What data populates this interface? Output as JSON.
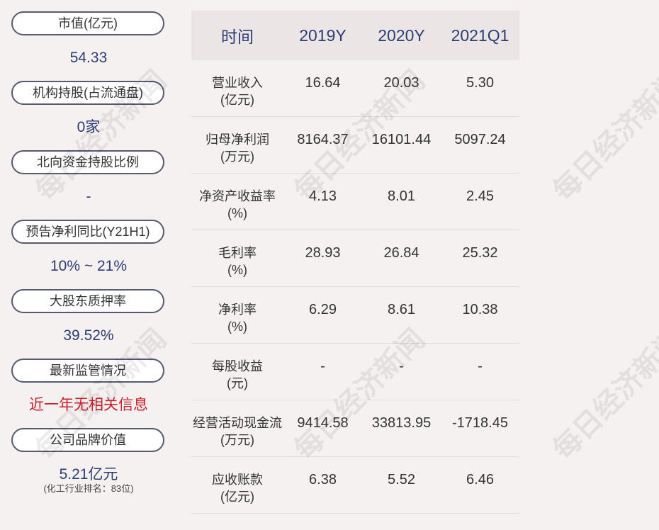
{
  "left_panel": [
    {
      "label": "市值(亿元)",
      "value": "54.33"
    },
    {
      "label": "机构持股(占流通盘)",
      "value": "0家"
    },
    {
      "label": "北向资金持股比例",
      "value": "-"
    },
    {
      "label": "预告净利同比(Y21H1)",
      "value": "10% ~ 21%"
    },
    {
      "label": "大股东质押率",
      "value": "39.52%"
    },
    {
      "label": "最新监管情况",
      "value": "近一年无相关信息"
    },
    {
      "label": "公司品牌价值",
      "value": "5.21亿元",
      "note": "(化工行业排名：83位)"
    }
  ],
  "table": {
    "headers": [
      "时间",
      "2019Y",
      "2020Y",
      "2021Q1"
    ],
    "rows": [
      {
        "label1": "营业收入",
        "label2": "(亿元)",
        "values": [
          "16.64",
          "20.03",
          "5.30"
        ]
      },
      {
        "label1": "归母净利润",
        "label2": "(万元)",
        "values": [
          "8164.37",
          "16101.44",
          "5097.24"
        ]
      },
      {
        "label1": "净资产收益率",
        "label2": "(%)",
        "values": [
          "4.13",
          "8.01",
          "2.45"
        ]
      },
      {
        "label1": "毛利率",
        "label2": "(%)",
        "values": [
          "28.93",
          "26.84",
          "25.32"
        ]
      },
      {
        "label1": "净利率",
        "label2": "(%)",
        "values": [
          "6.29",
          "8.61",
          "10.38"
        ]
      },
      {
        "label1": "每股收益",
        "label2": "(元)",
        "values": [
          "-",
          "-",
          "-"
        ]
      },
      {
        "label1": "经营活动现金流",
        "label2": "(万元)",
        "values": [
          "9414.58",
          "33813.95",
          "-1718.45"
        ]
      },
      {
        "label1": "应收账款",
        "label2": "(亿元)",
        "values": [
          "6.38",
          "5.52",
          "6.46"
        ]
      }
    ]
  },
  "watermark": "每日经济新闻",
  "colors": {
    "accent": "#2c3d73",
    "alert": "#c8202b",
    "header_bg": "#ebe5e5",
    "page_bg": "#f6f1f1"
  }
}
